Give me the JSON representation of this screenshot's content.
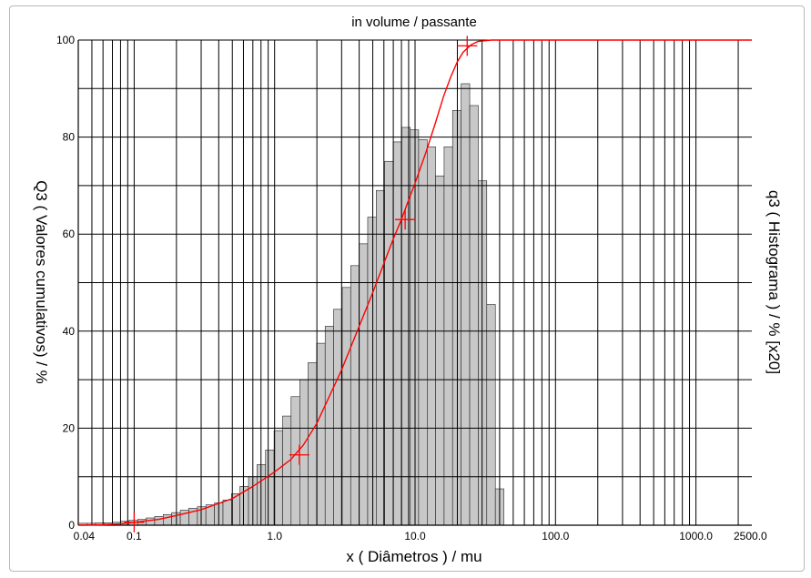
{
  "chart_data": {
    "type": "bar",
    "title": "in volume / passante",
    "xlabel": "x ( Diâmetros ) / mu",
    "ylabel_left": "Q3 ( Valores cumulativos) / %",
    "ylabel_right": "q3 ( Histograma ) / % [x20]",
    "x_scale": "log",
    "xlim": [
      0.04,
      2500.0
    ],
    "ylim": [
      0,
      100
    ],
    "grid": true,
    "y_ticks": [
      "0",
      "20",
      "40",
      "60",
      "80",
      "100"
    ],
    "x_tick_labels": [
      {
        "x": 0.04,
        "label": "0.04"
      },
      {
        "x": 0.1,
        "label": "0.1"
      },
      {
        "x": 1.0,
        "label": "1.0"
      },
      {
        "x": 10.0,
        "label": "10.0"
      },
      {
        "x": 100.0,
        "label": "100.0"
      },
      {
        "x": 1000.0,
        "label": "1000.0"
      },
      {
        "x": 2500.0,
        "label": "2500.0"
      }
    ],
    "series": [
      {
        "name": "q3 ( Histograma ) / % [x20]",
        "kind": "histogram",
        "color": "#c8c8c8",
        "edges": [
          0.04,
          0.046,
          0.053,
          0.061,
          0.07,
          0.08,
          0.092,
          0.106,
          0.122,
          0.14,
          0.161,
          0.185,
          0.213,
          0.245,
          0.282,
          0.324,
          0.373,
          0.429,
          0.493,
          0.567,
          0.652,
          0.75,
          0.862,
          0.991,
          1.14,
          1.31,
          1.51,
          1.73,
          1.99,
          2.29,
          2.63,
          3.03,
          3.48,
          4.0,
          4.6,
          5.29,
          6.08,
          6.99,
          8.04,
          9.25,
          10.6,
          12.2,
          14.0,
          16.1,
          18.5,
          21.3,
          24.5,
          28.2,
          32.4,
          37.3,
          42.9
        ],
        "values": [
          0.4,
          0.4,
          0.5,
          0.5,
          0.6,
          0.8,
          1.0,
          1.2,
          1.5,
          1.8,
          2.2,
          2.6,
          3.1,
          3.5,
          3.8,
          4.2,
          4.6,
          5.2,
          6.5,
          8.0,
          10.0,
          12.5,
          15.5,
          19.5,
          22.5,
          26.5,
          30.0,
          33.5,
          37.5,
          41.0,
          44.5,
          49.0,
          53.5,
          58.0,
          63.5,
          69.0,
          75.0,
          79.0,
          82.0,
          81.5,
          79.5,
          78.0,
          72.0,
          78.0,
          85.5,
          91.0,
          86.5,
          71.0,
          45.5,
          7.5
        ]
      },
      {
        "name": "Q3 ( Valores cumulativos) / %",
        "kind": "line",
        "color": "#ff0000",
        "x": [
          0.04,
          0.06,
          0.08,
          0.1,
          0.15,
          0.2,
          0.3,
          0.5,
          0.7,
          1.0,
          1.3,
          1.6,
          2.0,
          3.0,
          4.0,
          5.0,
          6.0,
          7.0,
          8.0,
          9.0,
          10.0,
          12.0,
          14.0,
          16.0,
          18.0,
          20.0,
          22.0,
          25.0,
          28.0,
          35.0,
          50.0,
          100.0,
          500.0,
          2500.0
        ],
        "y": [
          0.0,
          0.1,
          0.3,
          0.6,
          1.2,
          2.0,
          3.2,
          5.5,
          8.0,
          11.0,
          13.5,
          16.5,
          21.0,
          32.0,
          41.0,
          48.0,
          54.0,
          59.0,
          63.0,
          67.0,
          70.5,
          77.0,
          83.0,
          88.5,
          92.5,
          95.5,
          97.5,
          99.0,
          99.7,
          100.0,
          100.0,
          100.0,
          100.0,
          100.0
        ]
      }
    ],
    "markers": [
      {
        "x": 0.1,
        "y": 0.6
      },
      {
        "x": 1.5,
        "y": 14.5
      },
      {
        "x": 8.5,
        "y": 63.0
      },
      {
        "x": 23.5,
        "y": 98.8
      }
    ]
  }
}
